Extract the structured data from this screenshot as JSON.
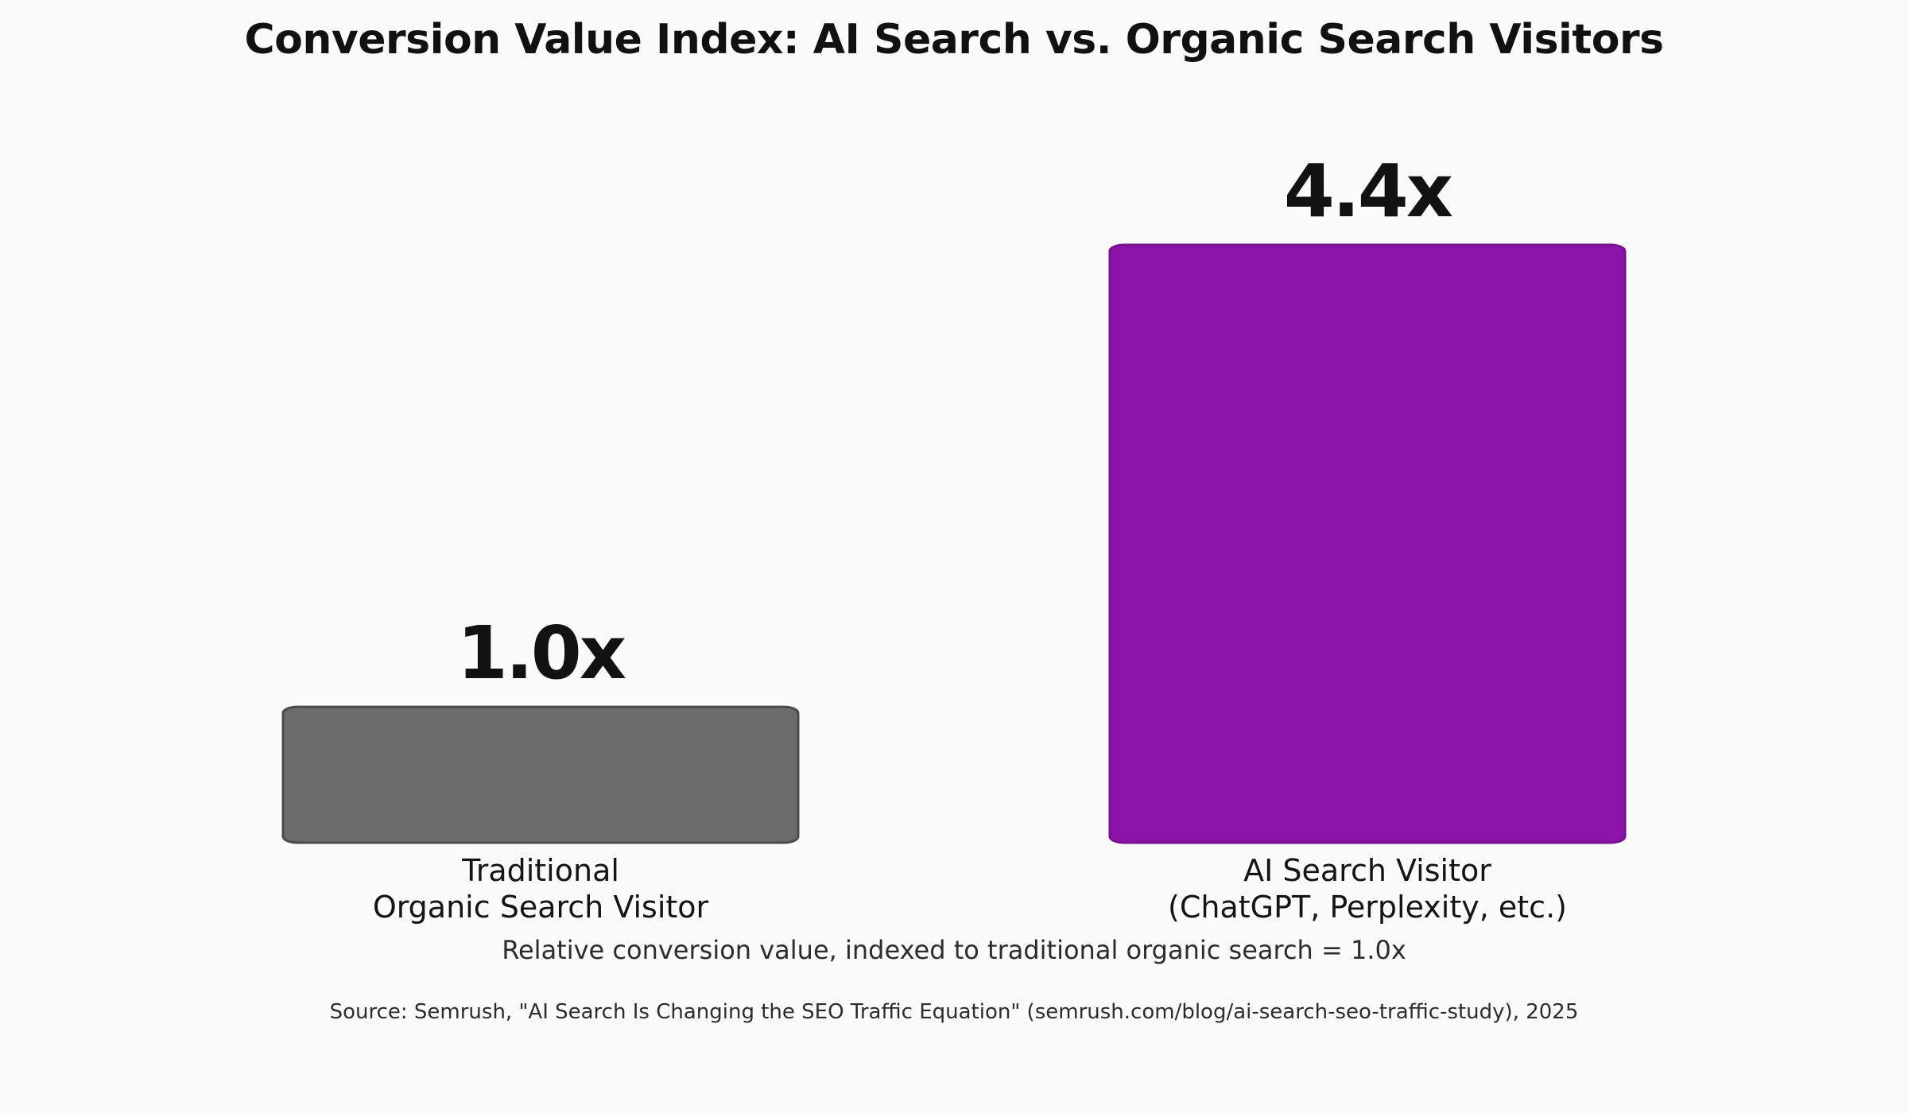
{
  "chart_data": {
    "type": "bar",
    "title": "Conversion Value Index: AI Search vs. Organic Search Visitors",
    "categories": [
      [
        "Traditional",
        "Organic Search Visitor"
      ],
      [
        "AI Search Visitor",
        "(ChatGPT, Perplexity, etc.)"
      ]
    ],
    "values": [
      1.0,
      4.4
    ],
    "data_labels": [
      "1.0x",
      "4.4x"
    ],
    "colors": [
      "#6b6b6b",
      "#8c14a8"
    ],
    "ylim": [
      0,
      4.4
    ],
    "grid": false,
    "legend": "none",
    "note": "Relative conversion value, indexed to traditional organic search = 1.0x",
    "source": "Source: Semrush, \"AI Search Is Changing the SEO Traffic Equation\" (semrush.com/blog/ai-search-seo-traffic-study), 2025"
  }
}
